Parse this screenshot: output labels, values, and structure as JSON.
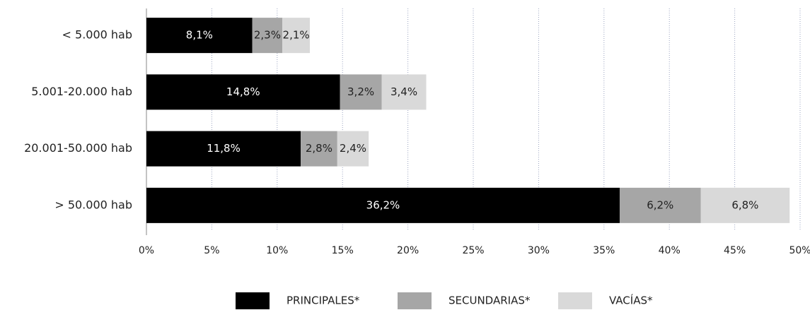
{
  "chart_data": {
    "type": "stacked_bar_horizontal",
    "categories": [
      "< 5.000 hab",
      "5.001-20.000 hab",
      "20.001-50.000 hab",
      "> 50.000 hab"
    ],
    "series": [
      {
        "name": "PRINCIPALES*",
        "color": "#000000",
        "values": [
          8.1,
          14.8,
          11.8,
          36.2
        ],
        "value_labels": [
          "8,1%",
          "14,8%",
          "11,8%",
          "36,2%"
        ]
      },
      {
        "name": "SECUNDARIAS*",
        "color": "#a6a6a6",
        "values": [
          2.3,
          3.2,
          2.8,
          6.2
        ],
        "value_labels": [
          "2,3%",
          "3,2%",
          "2,8%",
          "6,2%"
        ]
      },
      {
        "name": "VACÍAS*",
        "color": "#d9d9d9",
        "values": [
          2.1,
          3.4,
          2.4,
          6.8
        ],
        "value_labels": [
          "2,1%",
          "3,4%",
          "2,4%",
          "6,8%"
        ]
      }
    ],
    "xlim": [
      0,
      50
    ],
    "xticks": [
      {
        "value": 0,
        "label": "0%"
      },
      {
        "value": 5,
        "label": "5%"
      },
      {
        "value": 10,
        "label": "10%"
      },
      {
        "value": 15,
        "label": "15%"
      },
      {
        "value": 20,
        "label": "20%"
      },
      {
        "value": 25,
        "label": "25%"
      },
      {
        "value": 30,
        "label": "30%"
      },
      {
        "value": 35,
        "label": "35%"
      },
      {
        "value": 40,
        "label": "40%"
      },
      {
        "value": 45,
        "label": "45%"
      },
      {
        "value": 50,
        "label": "50%"
      }
    ],
    "grid": true,
    "legend": "bottom"
  }
}
